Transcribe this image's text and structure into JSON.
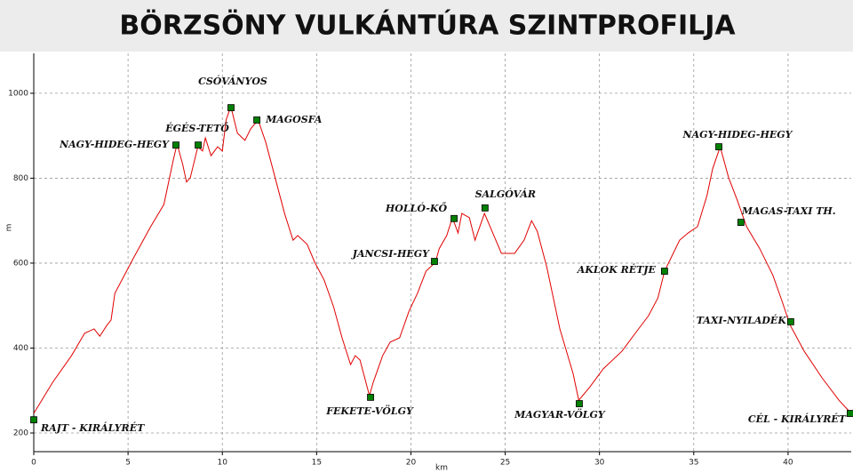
{
  "chart_data": {
    "type": "line",
    "title": "BÖRZSÖNY VULKÁNTÚRA SZINTPROFILJA",
    "xlabel": "km",
    "ylabel": "m",
    "color": "#e00000",
    "marker_color": "#008000",
    "grid": true,
    "xlim": [
      0,
      43.35
    ],
    "ylim": [
      156,
      1094
    ],
    "xticks": [
      0,
      5,
      10,
      15,
      20,
      25,
      30,
      35,
      40
    ],
    "yticks": [
      200,
      400,
      600,
      800,
      1000
    ],
    "x": [
      0,
      1.0,
      2.0,
      2.7,
      3.2,
      3.5,
      3.9,
      4.1,
      4.3,
      5.3,
      6.2,
      6.9,
      7.4,
      7.6,
      7.9,
      8.1,
      8.3,
      8.7,
      8.95,
      9.1,
      9.4,
      9.75,
      10.0,
      10.2,
      10.45,
      10.8,
      11.2,
      11.5,
      11.9,
      12.3,
      12.8,
      13.3,
      13.75,
      14.0,
      14.5,
      14.9,
      15.4,
      15.9,
      16.35,
      16.8,
      17.05,
      17.3,
      17.8,
      18.0,
      18.5,
      18.9,
      19.4,
      19.9,
      20.35,
      20.8,
      21.3,
      21.5,
      21.9,
      22.2,
      22.5,
      22.7,
      23.1,
      23.4,
      23.9,
      24.4,
      24.8,
      25.5,
      26.0,
      26.4,
      26.7,
      27.2,
      27.9,
      28.6,
      28.9,
      29.5,
      30.2,
      31.2,
      31.9,
      32.6,
      33.1,
      33.45,
      33.8,
      34.25,
      34.7,
      35.2,
      35.7,
      36.0,
      36.4,
      36.85,
      37.3,
      37.8,
      38.5,
      39.2,
      39.7,
      40.1,
      40.85,
      41.8,
      42.7,
      43.35
    ],
    "values": [
      246,
      319,
      382,
      435,
      445,
      428,
      455,
      466,
      529,
      613,
      686,
      738,
      843,
      881,
      832,
      791,
      801,
      874,
      864,
      895,
      853,
      874,
      864,
      937,
      969,
      906,
      889,
      916,
      937,
      885,
      801,
      717,
      654,
      665,
      644,
      602,
      560,
      497,
      424,
      361,
      382,
      372,
      288,
      319,
      382,
      414,
      424,
      487,
      529,
      581,
      602,
      634,
      665,
      707,
      671,
      717,
      707,
      654,
      717,
      665,
      623,
      623,
      654,
      700,
      675,
      592,
      445,
      340,
      277,
      309,
      351,
      393,
      435,
      476,
      518,
      581,
      613,
      654,
      671,
      686,
      759,
      822,
      874,
      801,
      749,
      686,
      634,
      571,
      508,
      455,
      393,
      330,
      277,
      246
    ],
    "points": [
      {
        "label": "RAJT - KIRÁLYRÉT",
        "x": 0,
        "y": 231
      },
      {
        "label": "NAGY-HIDEG-HEGY",
        "x": 7.54,
        "y": 878
      },
      {
        "label": "ÉGÉS-TETŐ",
        "x": 8.72,
        "y": 878
      },
      {
        "label": "CSÓVÁNYOS",
        "x": 10.46,
        "y": 966
      },
      {
        "label": "MAGOSFA",
        "x": 11.83,
        "y": 937
      },
      {
        "label": "FEKETE-VÖLGY",
        "x": 17.86,
        "y": 284
      },
      {
        "label": "JANCSI-HEGY",
        "x": 21.25,
        "y": 604
      },
      {
        "label": "HOLLÓ-KŐ",
        "x": 22.29,
        "y": 705
      },
      {
        "label": "SALGÓVÁR",
        "x": 23.93,
        "y": 730
      },
      {
        "label": "MAGYAR-VÖLGY",
        "x": 28.93,
        "y": 269
      },
      {
        "label": "AKLOK RÉTJE",
        "x": 33.45,
        "y": 581
      },
      {
        "label": "NAGY-HIDEG-HEGY",
        "x": 36.33,
        "y": 874
      },
      {
        "label": "MAGAS-TAXI TH.",
        "x": 37.5,
        "y": 696
      },
      {
        "label": "TAXI-NYILADÉK",
        "x": 40.14,
        "y": 462
      },
      {
        "label": "CÉL - KIRÁLYRÉT",
        "x": 43.3,
        "y": 246
      }
    ]
  }
}
